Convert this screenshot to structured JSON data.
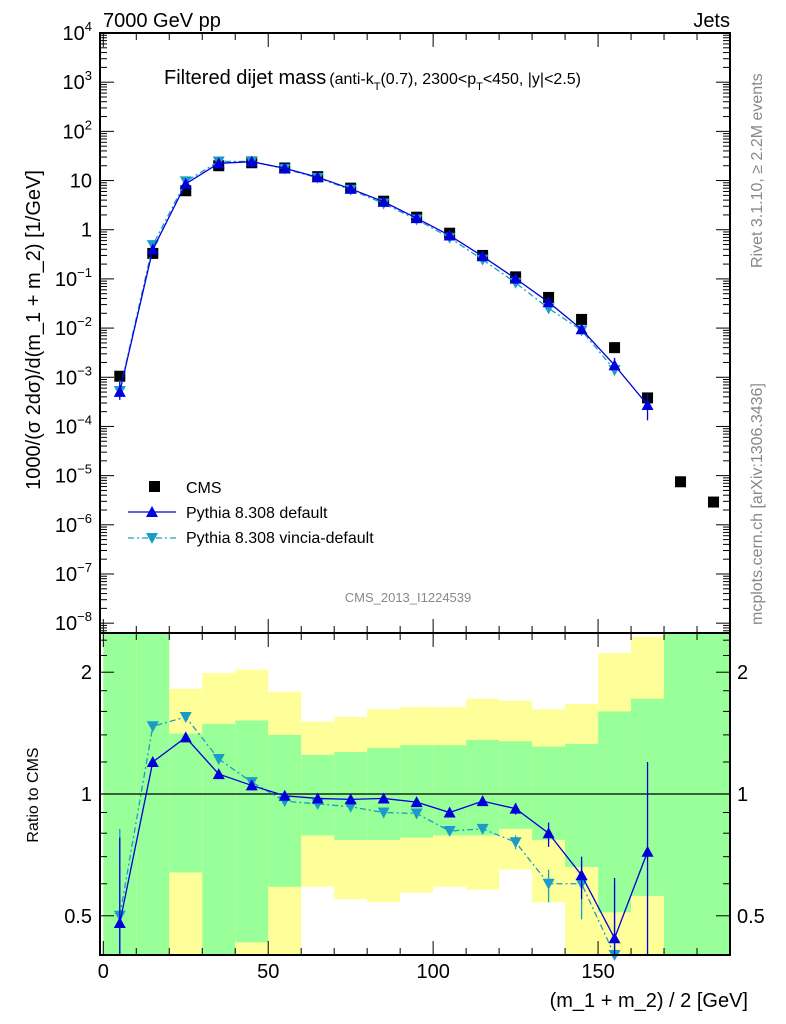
{
  "header": {
    "left": "7000 GeV pp",
    "right": "Jets"
  },
  "side_labels": {
    "rivet": "Rivet 3.1.10, ≥ 2.2M events",
    "mcplots": "mcplots.cern.ch [arXiv:1306.3436]"
  },
  "watermark": "CMS_2013_I1224539",
  "chart_data": {
    "type": "scatter",
    "title": "Filtered dijet mass",
    "subtitle_parts": [
      "(anti-k",
      "T",
      "(0.7), 2300<p",
      "T",
      "<450, |y|<2.5)"
    ],
    "xlabel": "(m_1 + m_2) / 2 [GeV]",
    "ylabel": "1000/(σ 2dσ)/d(m_1 + m_2) [1/GeV]",
    "ratio_ylabel": "Ratio to CMS",
    "xlim": [
      -1,
      190
    ],
    "ylim_log10": [
      -8.2,
      4
    ],
    "ratio_ylim": [
      0.4,
      2.5
    ],
    "xticks": [
      0,
      50,
      100,
      150
    ],
    "xtick_labels": [
      "0",
      "50",
      "100",
      "150"
    ],
    "yticks": [
      {
        "exp": 4,
        "base": "10",
        "sup": "4"
      },
      {
        "exp": 3,
        "base": "10",
        "sup": "3"
      },
      {
        "exp": 2,
        "base": "10",
        "sup": "2"
      },
      {
        "exp": 1,
        "base": "10",
        "sup": ""
      },
      {
        "exp": 0,
        "base": "1",
        "sup": ""
      },
      {
        "exp": -1,
        "base": "10",
        "sup": "−1"
      },
      {
        "exp": -2,
        "base": "10",
        "sup": "−2"
      },
      {
        "exp": -3,
        "base": "10",
        "sup": "−3"
      },
      {
        "exp": -4,
        "base": "10",
        "sup": "−4"
      },
      {
        "exp": -5,
        "base": "10",
        "sup": "−5"
      },
      {
        "exp": -6,
        "base": "10",
        "sup": "−6"
      },
      {
        "exp": -7,
        "base": "10",
        "sup": "−7"
      },
      {
        "exp": -8,
        "base": "10",
        "sup": "−8"
      }
    ],
    "ratio_ticks": [
      0.5,
      1,
      2
    ],
    "ratio_tick_labels": [
      "0.5",
      "1",
      "2"
    ],
    "x": [
      5,
      15,
      25,
      35,
      45,
      55,
      65,
      75,
      85,
      95,
      105,
      115,
      125,
      135,
      145,
      155,
      165,
      175,
      185
    ],
    "legend_position": "bottom-left",
    "colors": {
      "cms": "#000000",
      "default": "#0000dd",
      "vincia": "#1a9cc8",
      "green": "#99ff99",
      "yellow": "#ffff99"
    },
    "series": [
      {
        "name": "CMS",
        "values": [
          0.00105,
          0.33,
          6.2,
          20,
          23,
          18,
          12,
          7,
          3.8,
          1.8,
          0.85,
          0.3,
          0.11,
          0.042,
          0.015,
          0.004,
          0.00038,
          7.5e-06,
          2.9e-06
        ]
      },
      {
        "name": "Pythia 8.308 default",
        "ratio": [
          0.48,
          1.2,
          1.38,
          1.12,
          1.05,
          0.99,
          0.975,
          0.97,
          0.975,
          0.955,
          0.9,
          0.96,
          0.92,
          0.8,
          0.63,
          0.44,
          0.72
        ],
        "ratio_err": [
          [
            0.33,
            0.78
          ],
          null,
          null,
          null,
          null,
          null,
          null,
          null,
          null,
          null,
          null,
          null,
          [
            0.89,
            0.95
          ],
          [
            0.74,
            0.85
          ],
          [
            0.55,
            0.7
          ],
          [
            0.35,
            0.62
          ],
          [
            0.35,
            1.2
          ]
        ]
      },
      {
        "name": "Pythia 8.308 vincia-default",
        "ratio": [
          0.5,
          1.47,
          1.55,
          1.22,
          1.07,
          0.96,
          0.945,
          0.93,
          0.9,
          0.895,
          0.81,
          0.82,
          0.76,
          0.6,
          0.6,
          0.35
        ],
        "ratio_err": [
          [
            0.4,
            0.82
          ],
          null,
          null,
          null,
          null,
          null,
          null,
          null,
          null,
          null,
          null,
          null,
          [
            0.73,
            0.79
          ],
          [
            0.54,
            0.65
          ],
          [
            0.49,
            0.68
          ],
          [
            0.3,
            0.6
          ]
        ]
      }
    ],
    "bands": {
      "bin_edges": [
        0,
        10,
        20,
        30,
        40,
        50,
        60,
        70,
        80,
        90,
        100,
        110,
        120,
        130,
        140,
        150,
        160,
        170,
        180,
        190
      ],
      "yellow_low": [
        0.3,
        0.3,
        0.3,
        0.3,
        0.3,
        0.3,
        0.59,
        0.55,
        0.54,
        0.57,
        0.59,
        0.58,
        0.65,
        0.54,
        0.3,
        0.3,
        0.3,
        0.3,
        0.3
      ],
      "green_low": [
        0.3,
        0.3,
        0.64,
        0.3,
        0.43,
        0.59,
        0.79,
        0.77,
        0.77,
        0.78,
        0.79,
        0.79,
        0.82,
        0.77,
        0.66,
        0.51,
        0.56,
        0.3,
        0.3
      ],
      "green_high": [
        3,
        3,
        1.41,
        1.49,
        1.52,
        1.4,
        1.25,
        1.27,
        1.3,
        1.32,
        1.32,
        1.36,
        1.35,
        1.31,
        1.33,
        1.6,
        1.72,
        3,
        3
      ],
      "yellow_high": [
        3,
        3,
        1.82,
        1.99,
        2.03,
        1.79,
        1.51,
        1.55,
        1.62,
        1.64,
        1.64,
        1.72,
        1.7,
        1.62,
        1.67,
        2.23,
        2.45,
        3,
        3
      ]
    }
  }
}
